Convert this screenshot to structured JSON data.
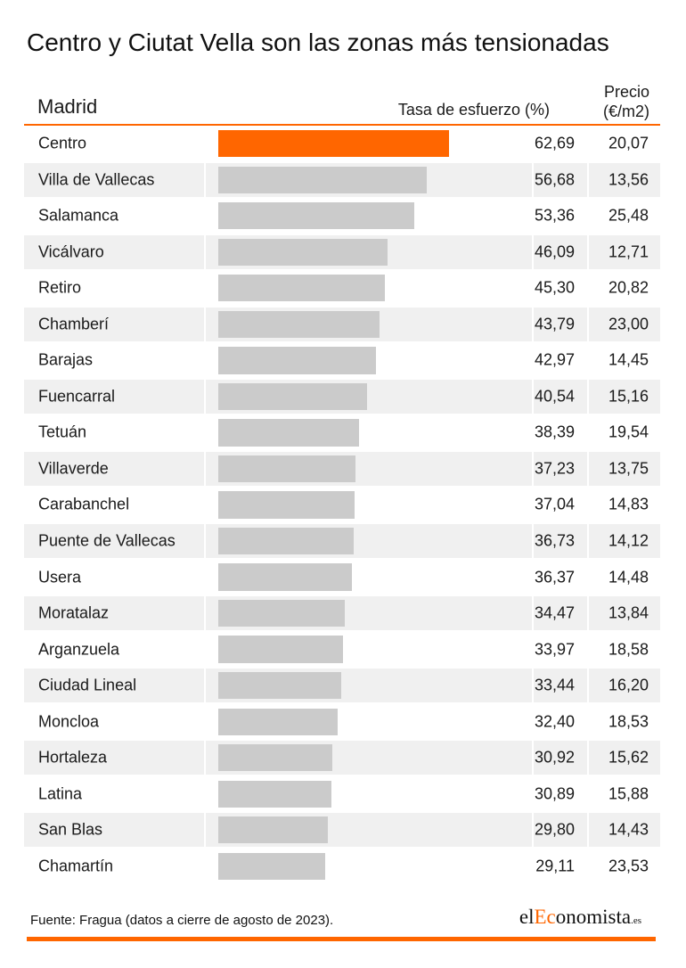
{
  "title": "Centro y Ciutat Vella son las zonas más tensionadas",
  "header": {
    "region": "Madrid",
    "tasa": "Tasa de esfuerzo (%)",
    "precio_line1": "Precio",
    "precio_line2": "(€/m2)"
  },
  "footer": {
    "source": "Fuente: Fragua (datos a cierre de agosto de 2023).",
    "logo_el": "el",
    "logo_ec": "Ec",
    "logo_rest": "onomista",
    "logo_es": ".es"
  },
  "colors": {
    "highlight": "#ff6600",
    "bar": "#cbcbcb",
    "row_shade": "#f0f0f0"
  },
  "chart_data": {
    "type": "bar",
    "orientation": "horizontal",
    "title": "Centro y Ciutat Vella son las zonas más tensionadas",
    "xlim": [
      0,
      80
    ],
    "highlight": "Centro",
    "categories": [
      "Centro",
      "Villa de Vallecas",
      "Salamanca",
      "Vicálvaro",
      "Retiro",
      "Chamberí",
      "Barajas",
      "Fuencarral",
      "Tetuán",
      "Villaverde",
      "Carabanchel",
      "Puente de Vallecas",
      "Usera",
      "Moratalaz",
      "Arganzuela",
      "Ciudad Lineal",
      "Moncloa",
      "Hortaleza",
      "Latina",
      "San Blas",
      "Chamartín"
    ],
    "values": [
      62.69,
      56.68,
      53.36,
      46.09,
      45.3,
      43.79,
      42.97,
      40.54,
      38.39,
      37.23,
      37.04,
      36.73,
      36.37,
      34.47,
      33.97,
      33.44,
      32.4,
      30.92,
      30.89,
      29.8,
      29.11
    ],
    "values_label": [
      "62,69",
      "56,68",
      "53,36",
      "46,09",
      "45,30",
      "43,79",
      "42,97",
      "40,54",
      "38,39",
      "37,23",
      "37,04",
      "36,73",
      "36,37",
      "34,47",
      "33,97",
      "33,44",
      "32,40",
      "30,92",
      "30,89",
      "29,80",
      "29,11"
    ],
    "prices_label": [
      "20,07",
      "13,56",
      "25,48",
      "12,71",
      "20,82",
      "23,00",
      "14,45",
      "15,16",
      "19,54",
      "13,75",
      "14,83",
      "14,12",
      "14,48",
      "13,84",
      "18,58",
      "16,20",
      "18,53",
      "15,62",
      "15,88",
      "14,43",
      "23,53"
    ]
  }
}
